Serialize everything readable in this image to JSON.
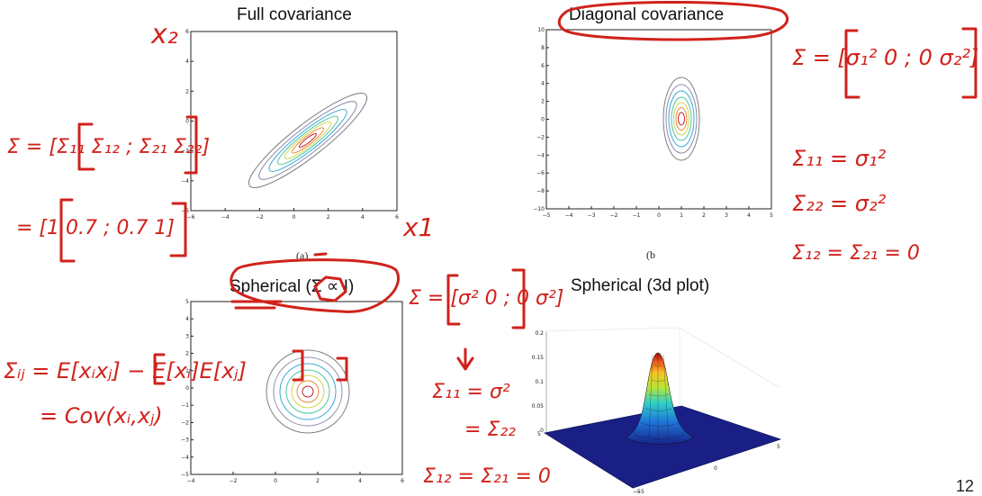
{
  "slide": {
    "page_number": "12",
    "ink_color": "#d0221b"
  },
  "panels": {
    "full": {
      "title": "Full covariance",
      "xticks": [
        "−6",
        "−4",
        "−2",
        "0",
        "2",
        "4",
        "6"
      ],
      "yticks": [
        "6",
        "4",
        "2",
        "0",
        "−2",
        "−4",
        "−6"
      ]
    },
    "diag": {
      "title": "Diagonal covariance",
      "xticks": [
        "−5",
        "−4",
        "−3",
        "−2",
        "−1",
        "0",
        "1",
        "2",
        "3",
        "4",
        "5"
      ],
      "yticks": [
        "10",
        "8",
        "6",
        "4",
        "2",
        "0",
        "−2",
        "−4",
        "−6",
        "−8",
        "−10"
      ]
    },
    "sph": {
      "title": "Spherical (Σ ∝ I)",
      "xticks": [
        "−4",
        "−2",
        "0",
        "2",
        "4",
        "6"
      ],
      "yticks": [
        "5",
        "4",
        "3",
        "2",
        "1",
        "0",
        "−1",
        "−2",
        "−3",
        "−4",
        "−5"
      ]
    },
    "sph3d": {
      "title": "Spherical (3d plot)",
      "zticks": [
        "0.2",
        "0.15",
        "0.1",
        "0.05",
        "0"
      ],
      "xticks": [
        "−5",
        "0",
        "5"
      ],
      "yticks": [
        "5",
        "0",
        "−5"
      ]
    }
  },
  "captions": {
    "a": "(a)",
    "b": "(b"
  },
  "annotations": {
    "x2": "x₂",
    "x1": "x1",
    "full_sigma_def": "Σ = [Σ₁₁ Σ₁₂ ; Σ₂₁ Σ₂₂]",
    "full_sigma_val": "= [1 0.7 ; 0.7 1]",
    "diag_sigma": "Σ = [σ₁² 0 ; 0 σ₂²]",
    "diag_eq1": "Σ₁₁ = σ₁²",
    "diag_eq2": "Σ₂₂ = σ₂²",
    "diag_eq3": "Σ₁₂ = Σ₂₁ = 0",
    "cov_def1": "Σᵢⱼ = E[xᵢxⱼ] − E[xᵢ]E[xⱼ]",
    "cov_def2": "= Cov(xᵢ,xⱼ)",
    "sph_sigma": "Σ = [σ² 0 ; 0 σ²]",
    "sph_eq1": "Σ₁₁ = σ²",
    "sph_eq2": "= Σ₂₂",
    "sph_eq3": "Σ₁₂ = Σ₂₁ = 0"
  }
}
